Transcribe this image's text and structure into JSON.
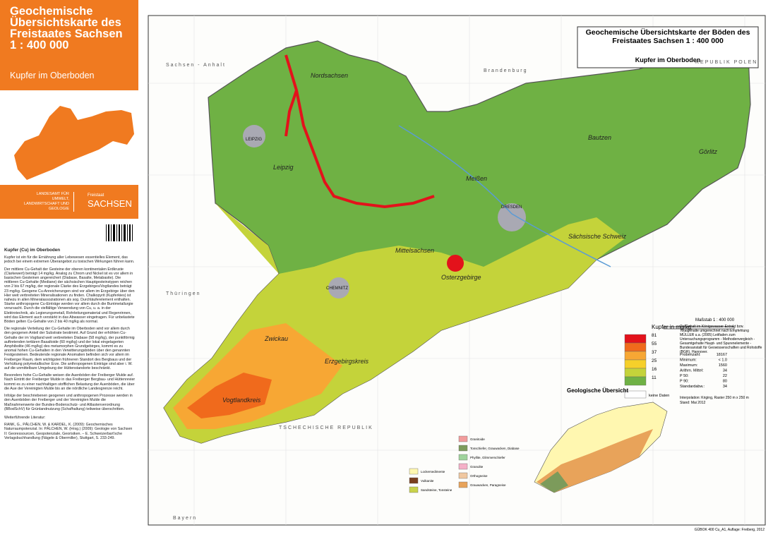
{
  "sidebar": {
    "title": "Geochemische Übersichtskarte des Freistaates Sachsen 1 : 400 000",
    "subtitle": "Kupfer im Oberboden",
    "agency": "LANDESAMT FÜR UMWELT, LANDWIRTSCHAFT UND GEOLOGIE",
    "state": "SACHSEN",
    "state_prefix": "Freistaat",
    "text_heading": "Kupfer (Cu) im Oberboden",
    "paragraphs": [
      "Kupfer ist ein für die Ernährung aller Lebewesen essentielles Element, das jedoch bei einem extremen Überangebot zu toxischen Wirkungen führen kann.",
      "Der mittlere Cu-Gehalt der Gesteine der oberen kontinentalen Erdkruste (Clarkewert) beträgt 14 mg/kg. Analog zu Chrom und Nickel ist es vor allem in basischen Gesteinen angereichert (Diabase, Basalte, Metabasite). Die mittleren Cu-Gehalte (Mediane) der sächsischen Hauptgesteinstypen reichen von 2 bis 67 mg/kg, der regionale Clarke des Erzgebirges/Vogtlandes beträgt 23 mg/kg. Geogene Cu-Anreicherungen sind vor allem im Erzgebirge über den Hier weit verbreiteten Mineralisationen zu finden. Chalkopyrit (Kupferkies) ist nahezu in allen Mineralassoziationen als sog. Durchläuferelement enthalten. Starke anthropogene Cu-Einträge werden vor allem durch die Buntmetallurgie verursacht. Durch die vielfältige Verwendung von Cu, u. a. in der Elektrotechnik, als Legierungsmetall, Rohrleitungsmaterial und Regenrinnen, wird das Element auch verstärkt in das Abwasser eingetragen. Für unbelastete Böden gelten Cu-Gehalte von 2 bis 40 mg/kg als normal.",
      "Die regionale Verteilung der Cu-Gehalte im Oberboden wird vor allem durch den geogenen Anteil der Substrate bestimmt. Auf Grund der erhöhten Cu-Gehalte der im Vogtland weit verbreiteten Diabase (58 mg/kg), der punktförmig auftretenden tertiären Basaltoide (60 mg/kg) und der lokal eingelagerten Amphibolite (46 mg/kg) des metamorphen Grundgebirges, kommt es zu anomal hohen Cu-Gehalten in den Verwitterungsböden über den genannten Festgesteinen. Bedeutende regionale Anomalien befinden sich vor allem im Freiberger Raum, dem wichtigsten frühneren Standort des Bergbaus und der Verhüttung polymetallischer Erze. Die anthropogenen Einträge sind aber i. W. auf die unmittelbare Umgebung der Hüttenstandorte beschränkt.",
      "Besonders hohe Cu-Gehalte weisen die Auenböden der Freiberger Mulde auf. Nach Eintritt der Freiberger Mulde in das Freiberger Bergbau- und Hüttenrevier kommt es zu einer nachhaltigen stofflichen Belastung der Auenböden, die über die Aue der Vereinigten Mulde bis an die nördliche Landesgrenze reicht.",
      "Infolge der beschriebenen geogenen und anthropogenen Prozesse werden in den Auenböden der Freiberger und der Vereinigten Mulde die Maßnahmenwerte der Bundes-Bodenschutz- und Altlastenverordnung (BBodSchV) für Grünlandnutzung (Schafhaltung) teilweise überschritten."
    ],
    "literature_heading": "Weiterführende Literatur:",
    "literature": "RANK, G., PÄLCHEN, W. & KARDEL, K. (2009): Geochemisches Naturraumpotenzial. In: PÄLCHEN, W. (Hrsg.) (2009): Geologie von Sachsen II: Georessourcen, Geopotenziale, Georisiken. – E. Schweizerbart'sche Verlagsbuchhandlung (Nägele & Obermiller), Stuttgart, S. 233-249."
  },
  "map": {
    "title": "Geochemische Übersichtskarte der Böden des Freistaates Sachsen 1 : 400 000",
    "subtitle": "Kupfer im Oberboden",
    "regions": [
      "Nordsachsen",
      "Leipzig",
      "Meißen",
      "Bautzen",
      "Görlitz",
      "Mittelsachsen",
      "Sächsische Schweiz",
      "Osterzgebirge",
      "Zwickau",
      "Erzgebirgskreis",
      "Vogtlandkreis"
    ],
    "cities": [
      "LEIPZIG",
      "DRESDEN",
      "CHEMNITZ"
    ],
    "neighbours": [
      "Sachsen - Anhalt",
      "Brandenburg",
      "REPUBLIK POLEN",
      "Thüringen",
      "TSCHECHISCHE REPUBLIK",
      "Bayern"
    ],
    "scale": "Maßstab 1 : 400 000",
    "legend_title": "Kupfer in mg/kg",
    "classes": [
      {
        "value": 81,
        "color": "#e3121b"
      },
      {
        "value": 55,
        "color": "#f06a1c"
      },
      {
        "value": 37,
        "color": "#f7a734"
      },
      {
        "value": 25,
        "color": "#f6d02a"
      },
      {
        "value": 16,
        "color": "#c4d33a"
      },
      {
        "value": 11,
        "color": "#6fb144"
      }
    ],
    "no_data_color": "#ffffff",
    "no_data": "keine Daten",
    "method": "Cu-Gehalt im Königswasser-Extrakt bzw. Totalgehalte umgerechnet nach Empfehlung MÜLLER u.a. (2005) Leitfaden zum Untersuchungsprogramm - Methodenvergleich - Gesamtgehalte Haupt- und Spurenelemente - Bundesanstalt für Geowissenschaften und Rohstoffe (BGR), Hannover.",
    "statistics": [
      [
        "Probenzahl:",
        "18167"
      ],
      [
        "Minimum:",
        "< 1.0"
      ],
      [
        "Maximum:",
        "1560"
      ],
      [
        "Arithm. Mittel:",
        "34"
      ],
      [
        "P 50:",
        "22"
      ],
      [
        "P 90:",
        "80"
      ],
      [
        "Standardabw.:",
        "34"
      ]
    ],
    "interpolation": "Interpolation: Kriging, Raster 250 m x 250 m",
    "date": "Stand: Mai 2012",
    "geology_title": "Geologische Übersicht",
    "geology_legend": [
      {
        "label": "Lockersedimente",
        "color": "#fff7b0"
      },
      {
        "label": "Vulkanite",
        "color": "#7a3f1f"
      },
      {
        "label": "Sandsteine, Tonsteine",
        "color": "#c9d24a"
      },
      {
        "label": "Granitoide",
        "color": "#f29c9c"
      },
      {
        "label": "Tonschiefer, Grauwacken, Diabase",
        "color": "#7c9b5b"
      },
      {
        "label": "Phyllite, Glimmerschiefer",
        "color": "#9fd39c"
      },
      {
        "label": "Granulite",
        "color": "#f5b0c8"
      },
      {
        "label": "Orthogneise",
        "color": "#f0c7a0"
      },
      {
        "label": "Grauwacken, Paragneise",
        "color": "#e8a35a"
      }
    ],
    "footer": "GÜBOK 400 Cu_A1, Auflage: Freiberg, 2012"
  }
}
